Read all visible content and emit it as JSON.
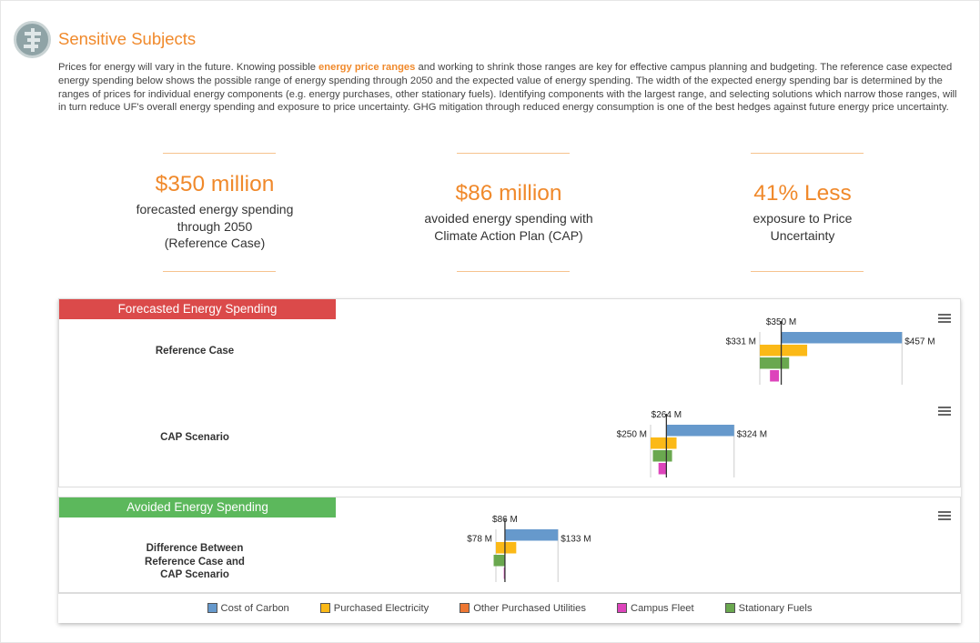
{
  "header": {
    "title": "Sensitive Subjects",
    "intro_before": "Prices for energy will vary in the future. Knowing possible ",
    "intro_link": "energy price ranges",
    "intro_after": " and working to shrink those ranges are key for effective campus planning and budgeting. The reference case expected energy spending below shows the possible range of energy spending through 2050 and the expected value of energy spending. The width of the expected energy spending bar is determined by the ranges of prices for individual energy components (e.g. energy purchases, other stationary fuels). Identifying components with the largest range, and selecting solutions which narrow those ranges, will in turn reduce UF's overall energy spending and exposure to price uncertainty. GHG mitigation through reduced energy consumption is one of the best hedges against future energy price uncertainty."
  },
  "stats": [
    {
      "value": "$350 million",
      "line1": "forecasted energy spending",
      "line2": "through 2050",
      "line3": "(Reference Case)"
    },
    {
      "value": "$86 million",
      "line1": "avoided energy spending with",
      "line2": "Climate Action Plan (CAP)",
      "line3": ""
    },
    {
      "value": "41% Less",
      "line1": "exposure to Price",
      "line2": "Uncertainty",
      "line3": ""
    }
  ],
  "panels": {
    "forecast_banner": "Forecasted Energy Spending",
    "avoided_banner": "Avoided Energy Spending",
    "forecast_color": "#db4a4a",
    "avoided_color": "#5cb85c"
  },
  "rows": {
    "reference_label": "Reference Case",
    "cap_label": "CAP Scenario",
    "diff_line1": "Difference Between",
    "diff_line2": "Reference Case and",
    "diff_line3": "CAP Scenario"
  },
  "legend": [
    {
      "name": "Cost of Carbon",
      "color": "#6699cc"
    },
    {
      "name": "Purchased Electricity",
      "color": "#fbb917"
    },
    {
      "name": "Other Purchased Utilities",
      "color": "#ee7733"
    },
    {
      "name": "Campus Fleet",
      "color": "#dd44bb"
    },
    {
      "name": "Stationary Fuels",
      "color": "#6aa84f"
    }
  ],
  "chart_data": [
    {
      "type": "bar",
      "title": "Reference Case",
      "expected_label": "$350 M",
      "min_label": "$331 M",
      "max_label": "$457 M",
      "expected": 350,
      "min": 331,
      "max": 457,
      "components": [
        {
          "name": "Cost of Carbon",
          "start": 350,
          "end": 457
        },
        {
          "name": "Purchased Electricity",
          "start": 331,
          "end": 373
        },
        {
          "name": "Stationary Fuels",
          "start": 331,
          "end": 357
        },
        {
          "name": "Campus Fleet",
          "start": 340,
          "end": 348
        }
      ]
    },
    {
      "type": "bar",
      "title": "CAP Scenario",
      "expected_label": "$264 M",
      "min_label": "$250 M",
      "max_label": "$324 M",
      "expected": 264,
      "min": 250,
      "max": 324,
      "components": [
        {
          "name": "Cost of Carbon",
          "start": 264,
          "end": 324
        },
        {
          "name": "Purchased Electricity",
          "start": 250,
          "end": 273
        },
        {
          "name": "Stationary Fuels",
          "start": 252,
          "end": 269
        },
        {
          "name": "Campus Fleet",
          "start": 257,
          "end": 264
        }
      ]
    },
    {
      "type": "bar",
      "title": "Difference Between Reference Case and CAP Scenario",
      "expected_label": "$86 M",
      "min_label": "$78 M",
      "max_label": "$133 M",
      "expected": 86,
      "min": 78,
      "max": 133,
      "components": [
        {
          "name": "Cost of Carbon",
          "start": 86,
          "end": 133
        },
        {
          "name": "Purchased Electricity",
          "start": 78,
          "end": 96
        },
        {
          "name": "Stationary Fuels",
          "start": 76,
          "end": 86
        },
        {
          "name": "Campus Fleet",
          "start": 85,
          "end": 86
        }
      ]
    }
  ]
}
